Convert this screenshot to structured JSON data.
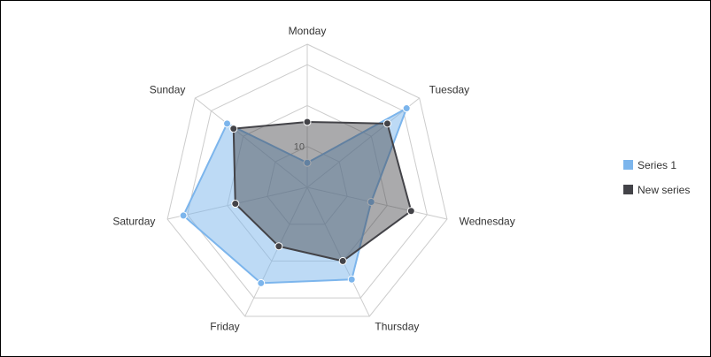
{
  "chart_data": {
    "type": "radar",
    "categories": [
      "Monday",
      "Tuesday",
      "Wednesday",
      "Thursday",
      "Friday",
      "Saturday",
      "Sunday"
    ],
    "radial_max": 35,
    "ring_step": 10,
    "tick_labels": [
      "10"
    ],
    "grid": true,
    "legend_position": "right",
    "series": [
      {
        "name": "Series 1",
        "color": "#7cb5ec",
        "values": [
          6,
          31,
          16,
          25,
          26,
          31,
          25
        ]
      },
      {
        "name": "New series",
        "color": "#434348",
        "values": [
          16,
          25,
          26,
          20,
          16,
          18,
          23
        ]
      }
    ]
  }
}
